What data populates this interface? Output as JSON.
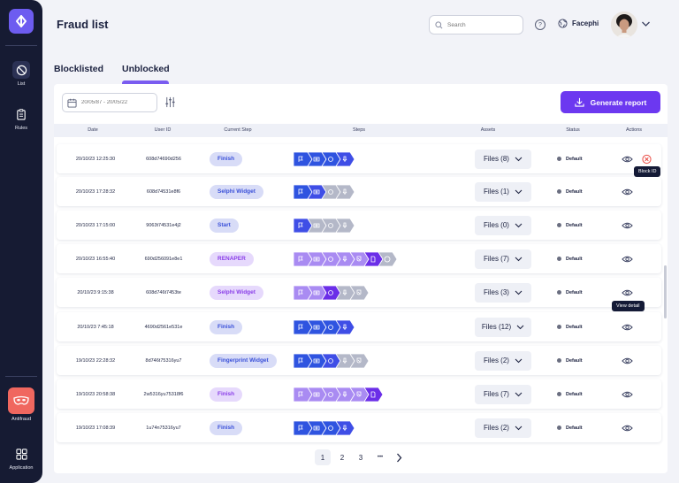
{
  "app": {
    "title": "Fraud list"
  },
  "sidebar": {
    "items": [
      {
        "label": "List",
        "icon": "ban-icon"
      },
      {
        "label": "Rules",
        "icon": "clipboard-icon"
      },
      {
        "label": "Antifraud",
        "icon": "mask-icon"
      },
      {
        "label": "Application",
        "icon": "grid-icon"
      }
    ]
  },
  "header": {
    "search_placeholder": "Search",
    "org_name": "Facephi"
  },
  "tabs": [
    {
      "label": "Blocklisted"
    },
    {
      "label": "Unblocked",
      "active": true
    }
  ],
  "filters": {
    "date_range_placeholder": "20/05/87 - 20/05/22"
  },
  "actions": {
    "generate_report": "Generate report"
  },
  "table": {
    "columns": [
      "Date",
      "User ID",
      "Current Step",
      "Steps",
      "Assets",
      "Status",
      "Actions"
    ],
    "rows": [
      {
        "date": "20/10/23 12:25:30",
        "user_id": "608d74690d256",
        "step": "Finish",
        "pill": "blue",
        "steps_total": 4,
        "steps_color": "blue",
        "assets": "Files (8)",
        "status": "Default"
      },
      {
        "date": "20/10/23 17:28:32",
        "user_id": "608d74531e8f6",
        "step": "Selphi Widget",
        "pill": "blue",
        "steps_total": 4,
        "steps_done": 1,
        "steps_color": "blue",
        "assets": "Files (1)",
        "status": "Default"
      },
      {
        "date": "20/10/23 17:15:00",
        "user_id": "9063t74531e4j2",
        "step": "Start",
        "pill": "blue",
        "steps_total": 4,
        "steps_done": 0,
        "steps_color": "blue",
        "assets": "Files (0)",
        "status": "Default"
      },
      {
        "date": "20/10/23 16:55:40",
        "user_id": "690d256091e8e1",
        "step": "RENAPER",
        "pill": "purple",
        "steps_total": 7,
        "steps_done": 5,
        "steps_color": "purple",
        "assets": "Files (7)",
        "status": "Default"
      },
      {
        "date": "20/10/23 9:15:38",
        "user_id": "608d746t7453te",
        "step": "Selphi Widget",
        "pill": "purple",
        "steps_total": 5,
        "steps_done": 2,
        "steps_color": "purple",
        "assets": "Files (3)",
        "status": "Default"
      },
      {
        "date": "20/10/23 7:45:18",
        "user_id": "4690d2561e531e",
        "step": "Finish",
        "pill": "blue",
        "steps_total": 4,
        "steps_color": "blue",
        "assets": "Files (12)",
        "status": "Default"
      },
      {
        "date": "19/10/23 22:28:32",
        "user_id": "8d746t75316yu7",
        "step": "Fingerprint Widget",
        "pill": "blue",
        "steps_total": 5,
        "steps_done": 2,
        "steps_color": "blue",
        "assets": "Files (2)",
        "status": "Default"
      },
      {
        "date": "19/10/23 20:58:38",
        "user_id": "2w5316yu75318f6",
        "step": "Finish",
        "pill": "purple",
        "steps_total": 6,
        "steps_color": "purple",
        "assets": "Files (7)",
        "status": "Default"
      },
      {
        "date": "19/10/23 17:08:39",
        "user_id": "1u74n75316yu7",
        "step": "Finish",
        "pill": "blue",
        "steps_total": 4,
        "steps_color": "blue",
        "assets": "Files (2)",
        "status": "Default"
      }
    ],
    "tooltips": {
      "block": "Block ID",
      "view": "View detail"
    }
  },
  "pagination": {
    "pages": [
      "1",
      "2",
      "3"
    ],
    "ellipsis": "•••",
    "current": "1"
  },
  "colors": {
    "accent": "#6c38f0",
    "sidebar_bg": "#161b33",
    "step_blue_done": "#2f54e0",
    "step_blue_current": "#3f4ee6",
    "step_purple_done": "#a98bf2",
    "step_purple_current": "#6b2ee8",
    "step_pending": "#b4b8c8"
  }
}
